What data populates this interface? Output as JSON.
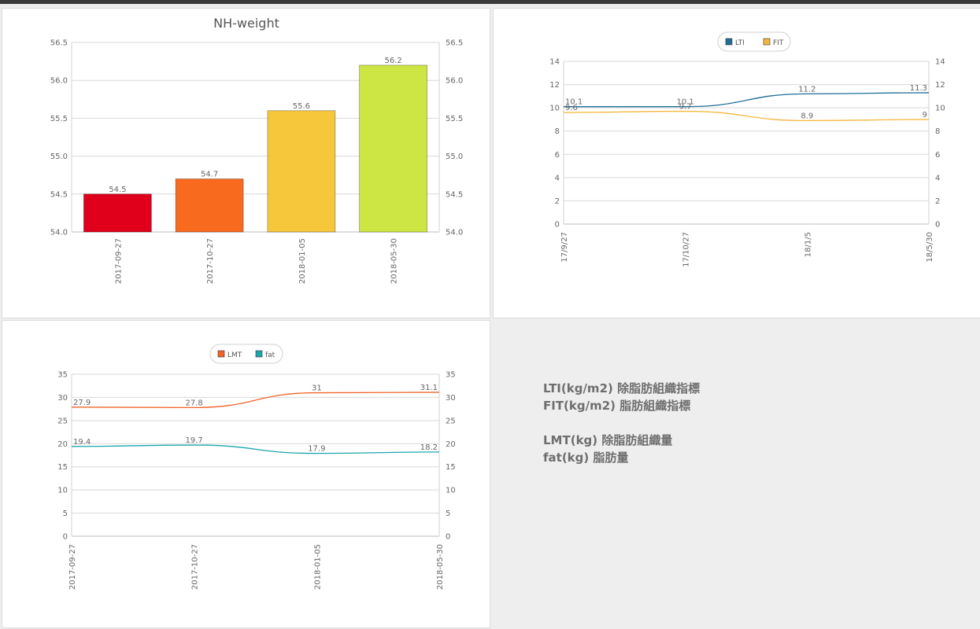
{
  "notes": {
    "line1": "LTI(kg/m2) 除脂肪組織指標",
    "line2": "FIT(kg/m2) 脂肪組織指標",
    "line3": "LMT(kg) 除脂肪組織量",
    "line4": "fat(kg) 脂肪量"
  },
  "chart_data": [
    {
      "type": "bar",
      "title": "NH-weight",
      "categories": [
        "2017-09-27",
        "2017-10-27",
        "2018-01-05",
        "2018-05-30"
      ],
      "values": [
        54.5,
        54.7,
        55.6,
        56.2
      ],
      "bar_colors": [
        "#e0001b",
        "#f86b1f",
        "#f6c73a",
        "#cde643"
      ],
      "ylim": [
        54.0,
        56.5
      ],
      "yticks": [
        "54.0",
        "54.5",
        "55.0",
        "55.5",
        "56.0",
        "56.5"
      ],
      "ytick_values": [
        54.0,
        54.5,
        55.0,
        55.5,
        56.0,
        56.5
      ],
      "grid": true,
      "dual_axis": true
    },
    {
      "type": "line",
      "title": "",
      "categories": [
        "17/9/27",
        "17/10/27",
        "18/1/5",
        "18/5/30"
      ],
      "series": [
        {
          "name": "LTI",
          "values": [
            10.1,
            10.1,
            11.2,
            11.3
          ],
          "color": "#1f6f96"
        },
        {
          "name": "FIT",
          "values": [
            9.6,
            9.7,
            8.9,
            9
          ],
          "color": "#f5b73b"
        }
      ],
      "ylim": [
        0,
        14
      ],
      "yticks": [
        "0",
        "2",
        "4",
        "6",
        "8",
        "10",
        "12",
        "14"
      ],
      "ytick_values": [
        0,
        2,
        4,
        6,
        8,
        10,
        12,
        14
      ],
      "legend": "top",
      "grid": true,
      "dual_axis": true
    },
    {
      "type": "line",
      "title": "",
      "categories": [
        "2017-09-27",
        "2017-10-27",
        "2018-01-05",
        "2018-05-30"
      ],
      "series": [
        {
          "name": "LMT",
          "values": [
            27.9,
            27.8,
            31,
            31.1
          ],
          "color": "#f0632a"
        },
        {
          "name": "fat",
          "values": [
            19.4,
            19.7,
            17.9,
            18.2
          ],
          "color": "#1aa6ad"
        }
      ],
      "ylim": [
        0,
        35
      ],
      "yticks": [
        "0",
        "5",
        "10",
        "15",
        "20",
        "25",
        "30",
        "35"
      ],
      "ytick_values": [
        0,
        5,
        10,
        15,
        20,
        25,
        30,
        35
      ],
      "legend": "top",
      "grid": true,
      "dual_axis": true
    }
  ]
}
